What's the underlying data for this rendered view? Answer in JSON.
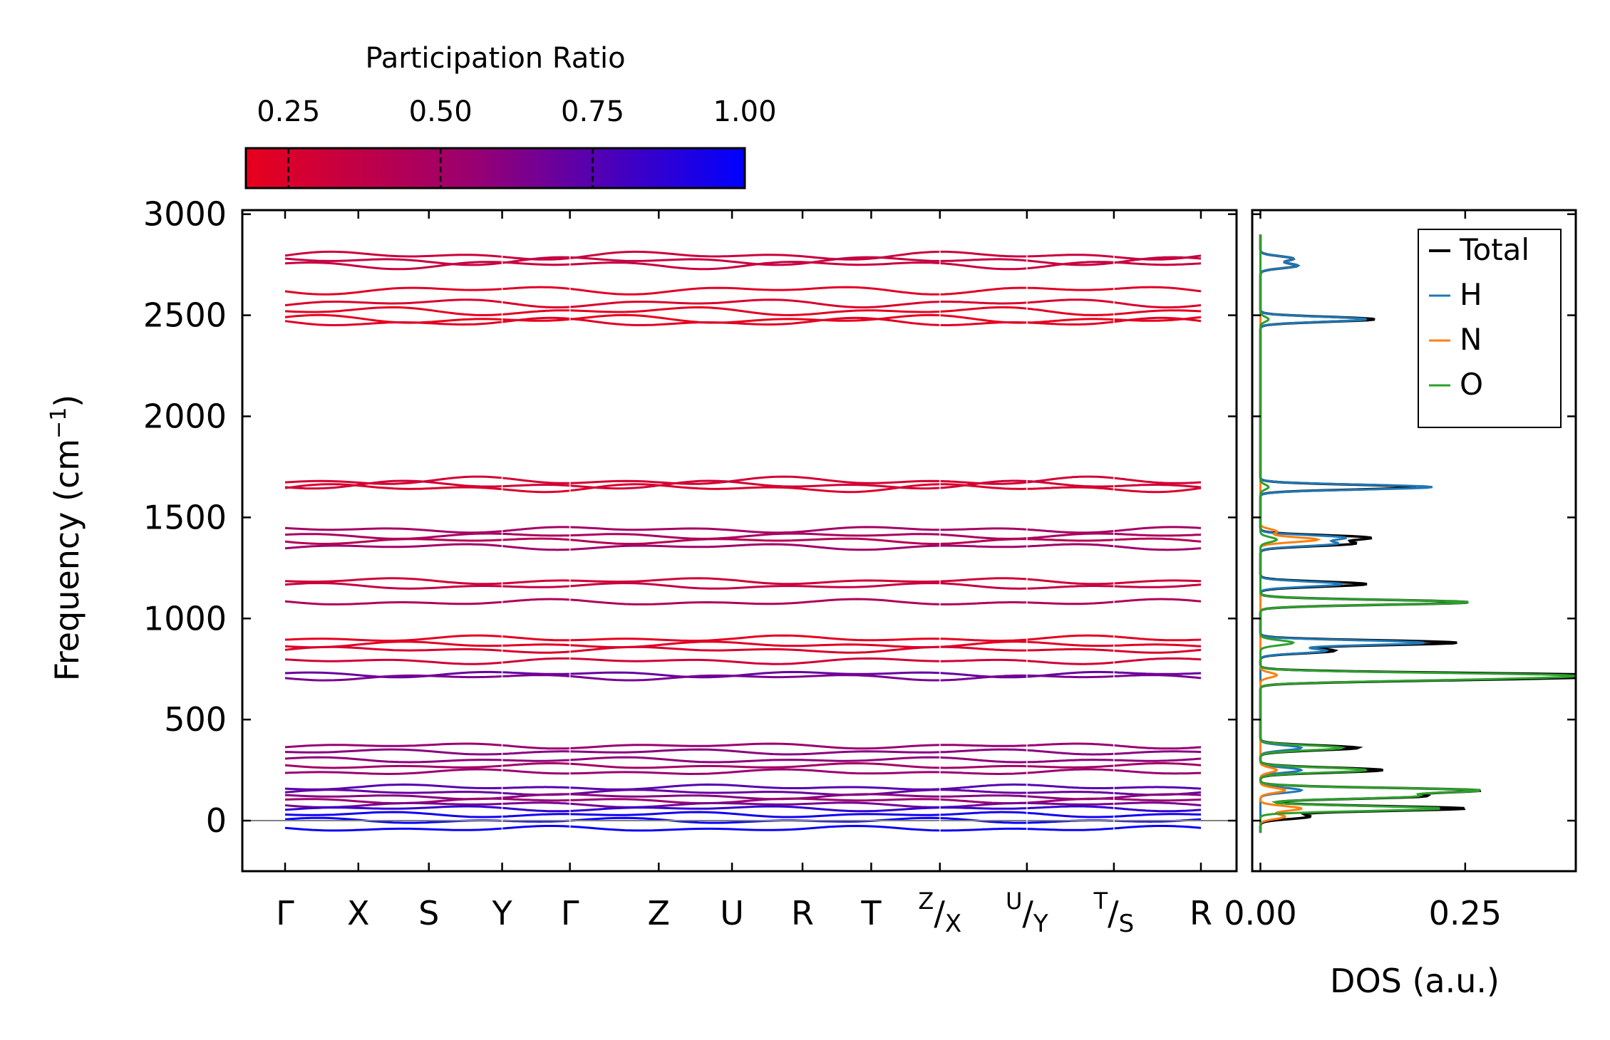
{
  "chart_data": [
    {
      "type": "line",
      "name": "phonon-band-structure",
      "title": "",
      "ylabel": "Frequency (cm",
      "ylabel_sup": "−1",
      "ylabel_close": ")",
      "ylim": [
        -250,
        3020
      ],
      "yticks": [
        0,
        500,
        1000,
        1500,
        2000,
        2500,
        3000
      ],
      "ytick_labels": [
        "0",
        "500",
        "1000",
        "1500",
        "2000",
        "2500",
        "3000"
      ],
      "xticks": [
        {
          "main": "Γ",
          "sup": ""
        },
        {
          "main": "X",
          "sup": ""
        },
        {
          "main": "S",
          "sup": ""
        },
        {
          "main": "Y",
          "sup": ""
        },
        {
          "main": "Γ",
          "sup": ""
        },
        {
          "main": "Z",
          "sup": ""
        },
        {
          "main": "U",
          "sup": ""
        },
        {
          "main": "R",
          "sup": ""
        },
        {
          "main": "T",
          "sup": ""
        },
        {
          "main": "/X",
          "sup": "Z"
        },
        {
          "main": "/Y",
          "sup": "U"
        },
        {
          "main": "/S",
          "sup": "T"
        },
        {
          "main": "R",
          "sup": ""
        }
      ],
      "kpath_positions": [
        0,
        0.08,
        0.157,
        0.237,
        0.311,
        0.408,
        0.488,
        0.565,
        0.64,
        0.715,
        0.81,
        0.905,
        1.0
      ],
      "segment_breaks": [
        0.237,
        0.311,
        0.715,
        0.81,
        0.905
      ],
      "zero_line": 0,
      "band_groups": [
        {
          "base": 2795,
          "participation": 0.32
        },
        {
          "base": 2770,
          "participation": 0.35
        },
        {
          "base": 2750,
          "participation": 0.33
        },
        {
          "base": 2625,
          "participation": 0.22
        },
        {
          "base": 2560,
          "participation": 0.25
        },
        {
          "base": 2520,
          "participation": 0.2
        },
        {
          "base": 2480,
          "participation": 0.18
        },
        {
          "base": 2465,
          "participation": 0.22
        },
        {
          "base": 1680,
          "participation": 0.28
        },
        {
          "base": 1660,
          "participation": 0.3
        },
        {
          "base": 1645,
          "participation": 0.25
        },
        {
          "base": 1440,
          "participation": 0.5
        },
        {
          "base": 1410,
          "participation": 0.48
        },
        {
          "base": 1385,
          "participation": 0.42
        },
        {
          "base": 1355,
          "participation": 0.52
        },
        {
          "base": 1185,
          "participation": 0.3
        },
        {
          "base": 1160,
          "participation": 0.35
        },
        {
          "base": 1080,
          "participation": 0.45
        },
        {
          "base": 900,
          "participation": 0.2
        },
        {
          "base": 870,
          "participation": 0.22
        },
        {
          "base": 845,
          "participation": 0.25
        },
        {
          "base": 790,
          "participation": 0.3
        },
        {
          "base": 725,
          "participation": 0.7
        },
        {
          "base": 710,
          "participation": 0.65
        },
        {
          "base": 370,
          "participation": 0.55
        },
        {
          "base": 340,
          "participation": 0.6
        },
        {
          "base": 300,
          "participation": 0.58
        },
        {
          "base": 270,
          "participation": 0.5
        },
        {
          "base": 240,
          "participation": 0.55
        },
        {
          "base": 165,
          "participation": 0.75
        },
        {
          "base": 140,
          "participation": 0.7
        },
        {
          "base": 120,
          "participation": 0.6
        },
        {
          "base": 100,
          "participation": 0.55
        },
        {
          "base": 80,
          "participation": 0.65
        },
        {
          "base": 60,
          "participation": 0.85
        },
        {
          "base": 30,
          "participation": 0.95
        },
        {
          "base": 0,
          "participation": 0.98
        },
        {
          "base": -40,
          "participation": 0.97
        }
      ],
      "colorbar": {
        "title": "Participation Ratio",
        "ticks": [
          0.25,
          0.5,
          0.75,
          1.0
        ],
        "tick_labels": [
          "0.25",
          "0.50",
          "0.75",
          "1.00"
        ],
        "range": [
          0.18,
          1.0
        ],
        "color_low": "#e8001c",
        "color_mid": "#9a0070",
        "color_high": "#0000ff"
      }
    },
    {
      "type": "line",
      "name": "density-of-states",
      "xlabel": "DOS (a.u.)",
      "xlim": [
        -0.01,
        0.385
      ],
      "xticks": [
        0.0,
        0.25
      ],
      "xtick_labels": [
        "0.00",
        "0.25"
      ],
      "ylim": [
        -250,
        3020
      ],
      "orientation": "horizontal",
      "series": [
        {
          "name": "Total",
          "color": "#000000",
          "peaks": [
            [
              2780,
              0.04
            ],
            [
              2745,
              0.045
            ],
            [
              2480,
              0.14
            ],
            [
              1650,
              0.19
            ],
            [
              1400,
              0.13
            ],
            [
              1370,
              0.11
            ],
            [
              1170,
              0.13
            ],
            [
              1080,
              0.255
            ],
            [
              880,
              0.24
            ],
            [
              840,
              0.09
            ],
            [
              720,
              0.37
            ],
            [
              700,
              0.22
            ],
            [
              360,
              0.12
            ],
            [
              250,
              0.15
            ],
            [
              150,
              0.26
            ],
            [
              120,
              0.19
            ],
            [
              60,
              0.25
            ],
            [
              20,
              0.06
            ]
          ]
        },
        {
          "name": "H",
          "color": "#1f77b4",
          "peaks": [
            [
              2780,
              0.04
            ],
            [
              2745,
              0.045
            ],
            [
              2480,
              0.13
            ],
            [
              1650,
              0.21
            ],
            [
              1400,
              0.1
            ],
            [
              1370,
              0.09
            ],
            [
              1170,
              0.1
            ],
            [
              880,
              0.2
            ],
            [
              840,
              0.08
            ],
            [
              360,
              0.05
            ],
            [
              250,
              0.05
            ],
            [
              150,
              0.05
            ]
          ]
        },
        {
          "name": "N",
          "color": "#ff7f0e",
          "peaks": [
            [
              1430,
              0.02
            ],
            [
              1390,
              0.07
            ],
            [
              720,
              0.02
            ],
            [
              250,
              0.02
            ],
            [
              150,
              0.03
            ],
            [
              60,
              0.05
            ],
            [
              20,
              0.03
            ]
          ]
        },
        {
          "name": "O",
          "color": "#2ca02c",
          "peaks": [
            [
              2480,
              0.01
            ],
            [
              1650,
              0.01
            ],
            [
              1390,
              0.02
            ],
            [
              1080,
              0.255
            ],
            [
              880,
              0.04
            ],
            [
              720,
              0.32
            ],
            [
              700,
              0.2
            ],
            [
              360,
              0.1
            ],
            [
              250,
              0.13
            ],
            [
              150,
              0.26
            ],
            [
              120,
              0.18
            ],
            [
              60,
              0.22
            ]
          ]
        }
      ],
      "legend": {
        "position": "top-right",
        "entries": [
          "Total",
          "H",
          "N",
          "O"
        ]
      }
    }
  ]
}
